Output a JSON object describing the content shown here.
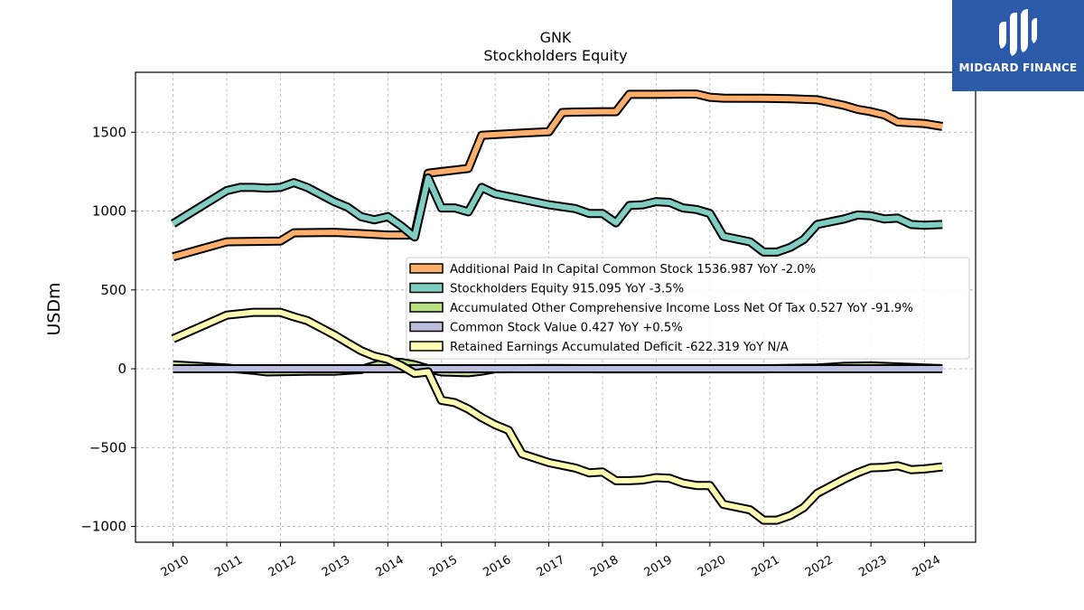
{
  "header": {
    "title": "GNK",
    "subtitle": "Stockholders  Equity"
  },
  "logo": {
    "text": "MIDGARD FINANCE",
    "background": "#2b5aa8"
  },
  "chart_data": {
    "type": "line",
    "title": "GNK",
    "subtitle": "Stockholders  Equity",
    "xlabel": "",
    "ylabel": "USDm",
    "xlim": [
      2009.3,
      2024.95
    ],
    "ylim": [
      -1100,
      1880
    ],
    "x_ticks": [
      2010,
      2011,
      2012,
      2013,
      2014,
      2015,
      2016,
      2017,
      2018,
      2019,
      2020,
      2021,
      2022,
      2023,
      2024
    ],
    "x_tick_labels": [
      "2010",
      "2011",
      "2012",
      "2013",
      "2014",
      "2015",
      "2016",
      "2017",
      "2018",
      "2019",
      "2020",
      "2021",
      "2022",
      "2023",
      "2024"
    ],
    "y_ticks": [
      -1000,
      -500,
      0,
      500,
      1000,
      1500
    ],
    "y_tick_labels": [
      "−1000",
      "−500",
      "0",
      "500",
      "1000",
      "1500"
    ],
    "grid": true,
    "legend_position": "center-right",
    "series": [
      {
        "name": "Additional Paid In Capital Common Stock",
        "legend_label": "Additional Paid In Capital Common Stock  1536.987 YoY -2.0%",
        "color": "#fdae6b",
        "x": [
          2010.0,
          2011.0,
          2012.0,
          2012.25,
          2013.0,
          2013.5,
          2014.0,
          2014.5,
          2014.75,
          2015.0,
          2015.5,
          2015.75,
          2016.0,
          2016.5,
          2017.0,
          2017.25,
          2017.5,
          2018.0,
          2018.25,
          2018.5,
          2019.0,
          2019.5,
          2019.75,
          2020.0,
          2020.25,
          2021.0,
          2021.5,
          2022.0,
          2022.5,
          2022.75,
          2023.0,
          2023.25,
          2023.5,
          2024.0,
          2024.33
        ],
        "y": [
          710,
          805,
          810,
          862,
          865,
          857,
          848,
          848,
          1240,
          1250,
          1270,
          1480,
          1485,
          1495,
          1503,
          1625,
          1628,
          1630,
          1630,
          1740,
          1740,
          1742,
          1742,
          1722,
          1716,
          1715,
          1712,
          1706,
          1670,
          1645,
          1630,
          1610,
          1565,
          1555,
          1537
        ]
      },
      {
        "name": "Stockholders Equity",
        "legend_label": "Stockholders Equity  915.095 YoY -3.5%",
        "color": "#80cdc1",
        "x": [
          2010.0,
          2011.0,
          2011.25,
          2011.5,
          2011.75,
          2012.0,
          2012.25,
          2012.5,
          2013.0,
          2013.25,
          2013.5,
          2013.75,
          2014.0,
          2014.25,
          2014.5,
          2014.75,
          2015.0,
          2015.25,
          2015.5,
          2015.75,
          2016.0,
          2016.5,
          2017.0,
          2017.5,
          2017.75,
          2018.0,
          2018.25,
          2018.5,
          2018.75,
          2019.0,
          2019.25,
          2019.5,
          2019.75,
          2020.0,
          2020.25,
          2020.75,
          2021.0,
          2021.25,
          2021.5,
          2021.75,
          2022.0,
          2022.5,
          2022.75,
          2023.0,
          2023.25,
          2023.5,
          2023.75,
          2024.0,
          2024.33
        ],
        "y": [
          920,
          1130,
          1150,
          1150,
          1145,
          1150,
          1180,
          1150,
          1060,
          1025,
          965,
          945,
          965,
          905,
          835,
          1210,
          1020,
          1020,
          995,
          1150,
          1110,
          1075,
          1040,
          1015,
          985,
          985,
          925,
          1035,
          1040,
          1060,
          1055,
          1020,
          1010,
          985,
          840,
          805,
          740,
          740,
          770,
          820,
          915,
          950,
          975,
          970,
          950,
          955,
          915,
          910,
          915
        ]
      },
      {
        "name": "Accumulated Other Comprehensive Income Loss Net Of Tax",
        "legend_label": "Accumulated Other Comprehensive Income Loss Net Of Tax  0.527 YoY -91.9%",
        "color": "#b8e186",
        "x": [
          2010.0,
          2011.0,
          2011.5,
          2011.75,
          2012.0,
          2012.5,
          2013.0,
          2013.5,
          2013.75,
          2014.0,
          2014.25,
          2014.5,
          2014.75,
          2015.0,
          2015.5,
          2015.75,
          2016.0,
          2017.0,
          2018.0,
          2019.0,
          2020.0,
          2021.0,
          2022.0,
          2022.5,
          2023.0,
          2023.5,
          2024.0,
          2024.33
        ],
        "y": [
          25,
          5,
          -10,
          -20,
          -18,
          -15,
          -15,
          -5,
          20,
          45,
          40,
          25,
          0,
          -20,
          -25,
          -15,
          0,
          2,
          0,
          0,
          0,
          0,
          5,
          15,
          18,
          12,
          5,
          0.527
        ]
      },
      {
        "name": "Common Stock Value",
        "legend_label": "Common Stock Value  0.427 YoY +0.5%",
        "color": "#bcbddc",
        "x": [
          2010.0,
          2024.33
        ],
        "y": [
          0.4,
          0.427
        ]
      },
      {
        "name": "Retained Earnings Accumulated Deficit",
        "legend_label": "Retained Earnings Accumulated Deficit  -622.319 YoY N/A",
        "color": "#ffffb3",
        "x": [
          2010.0,
          2011.0,
          2011.5,
          2012.0,
          2012.25,
          2012.5,
          2013.0,
          2013.25,
          2013.5,
          2013.75,
          2014.0,
          2014.25,
          2014.5,
          2014.75,
          2015.0,
          2015.25,
          2015.5,
          2015.75,
          2016.0,
          2016.25,
          2016.5,
          2017.0,
          2017.5,
          2017.75,
          2018.0,
          2018.25,
          2018.5,
          2018.75,
          2019.0,
          2019.25,
          2019.5,
          2019.75,
          2020.0,
          2020.25,
          2020.75,
          2021.0,
          2021.25,
          2021.5,
          2021.75,
          2022.0,
          2022.5,
          2022.75,
          2023.0,
          2023.25,
          2023.5,
          2023.75,
          2024.0,
          2024.33
        ],
        "y": [
          190,
          340,
          358,
          358,
          330,
          305,
          215,
          165,
          115,
          80,
          60,
          20,
          -30,
          -20,
          -200,
          -215,
          -255,
          -310,
          -355,
          -390,
          -540,
          -595,
          -630,
          -660,
          -655,
          -710,
          -710,
          -705,
          -690,
          -695,
          -725,
          -740,
          -740,
          -860,
          -895,
          -960,
          -960,
          -930,
          -880,
          -790,
          -700,
          -660,
          -628,
          -625,
          -615,
          -640,
          -635,
          -622
        ]
      }
    ]
  }
}
